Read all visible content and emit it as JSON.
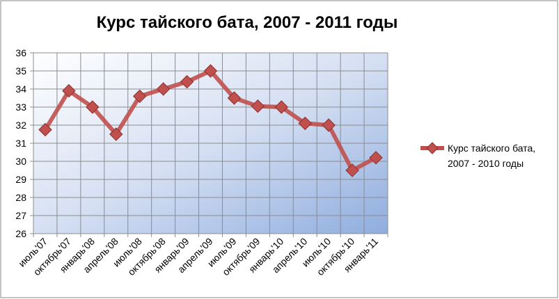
{
  "chart_data": {
    "type": "line",
    "title": "Курс тайского бата, 2007 - 2011 годы",
    "categories": [
      "июль'07",
      "октябрь'07",
      "январь'08",
      "апрель'08",
      "июль'08",
      "октябрь'08",
      "январь'09",
      "апрель'09",
      "июль'09",
      "октябрь'09",
      "январь'10",
      "апрель'10",
      "июль'10",
      "октябрь'10",
      "январь'11"
    ],
    "series": [
      {
        "name": "Курс тайского бата, 2007 - 2010 годы",
        "color": "#c0504d",
        "values": [
          31.75,
          33.9,
          33.0,
          31.5,
          33.6,
          34.0,
          34.4,
          35.0,
          33.5,
          33.05,
          33.0,
          32.1,
          32.0,
          29.5,
          30.2
        ]
      }
    ],
    "ylim": [
      26,
      36
    ],
    "yticks": [
      26,
      27,
      28,
      29,
      30,
      31,
      32,
      33,
      34,
      35,
      36
    ],
    "grid": true,
    "legend": "right"
  }
}
